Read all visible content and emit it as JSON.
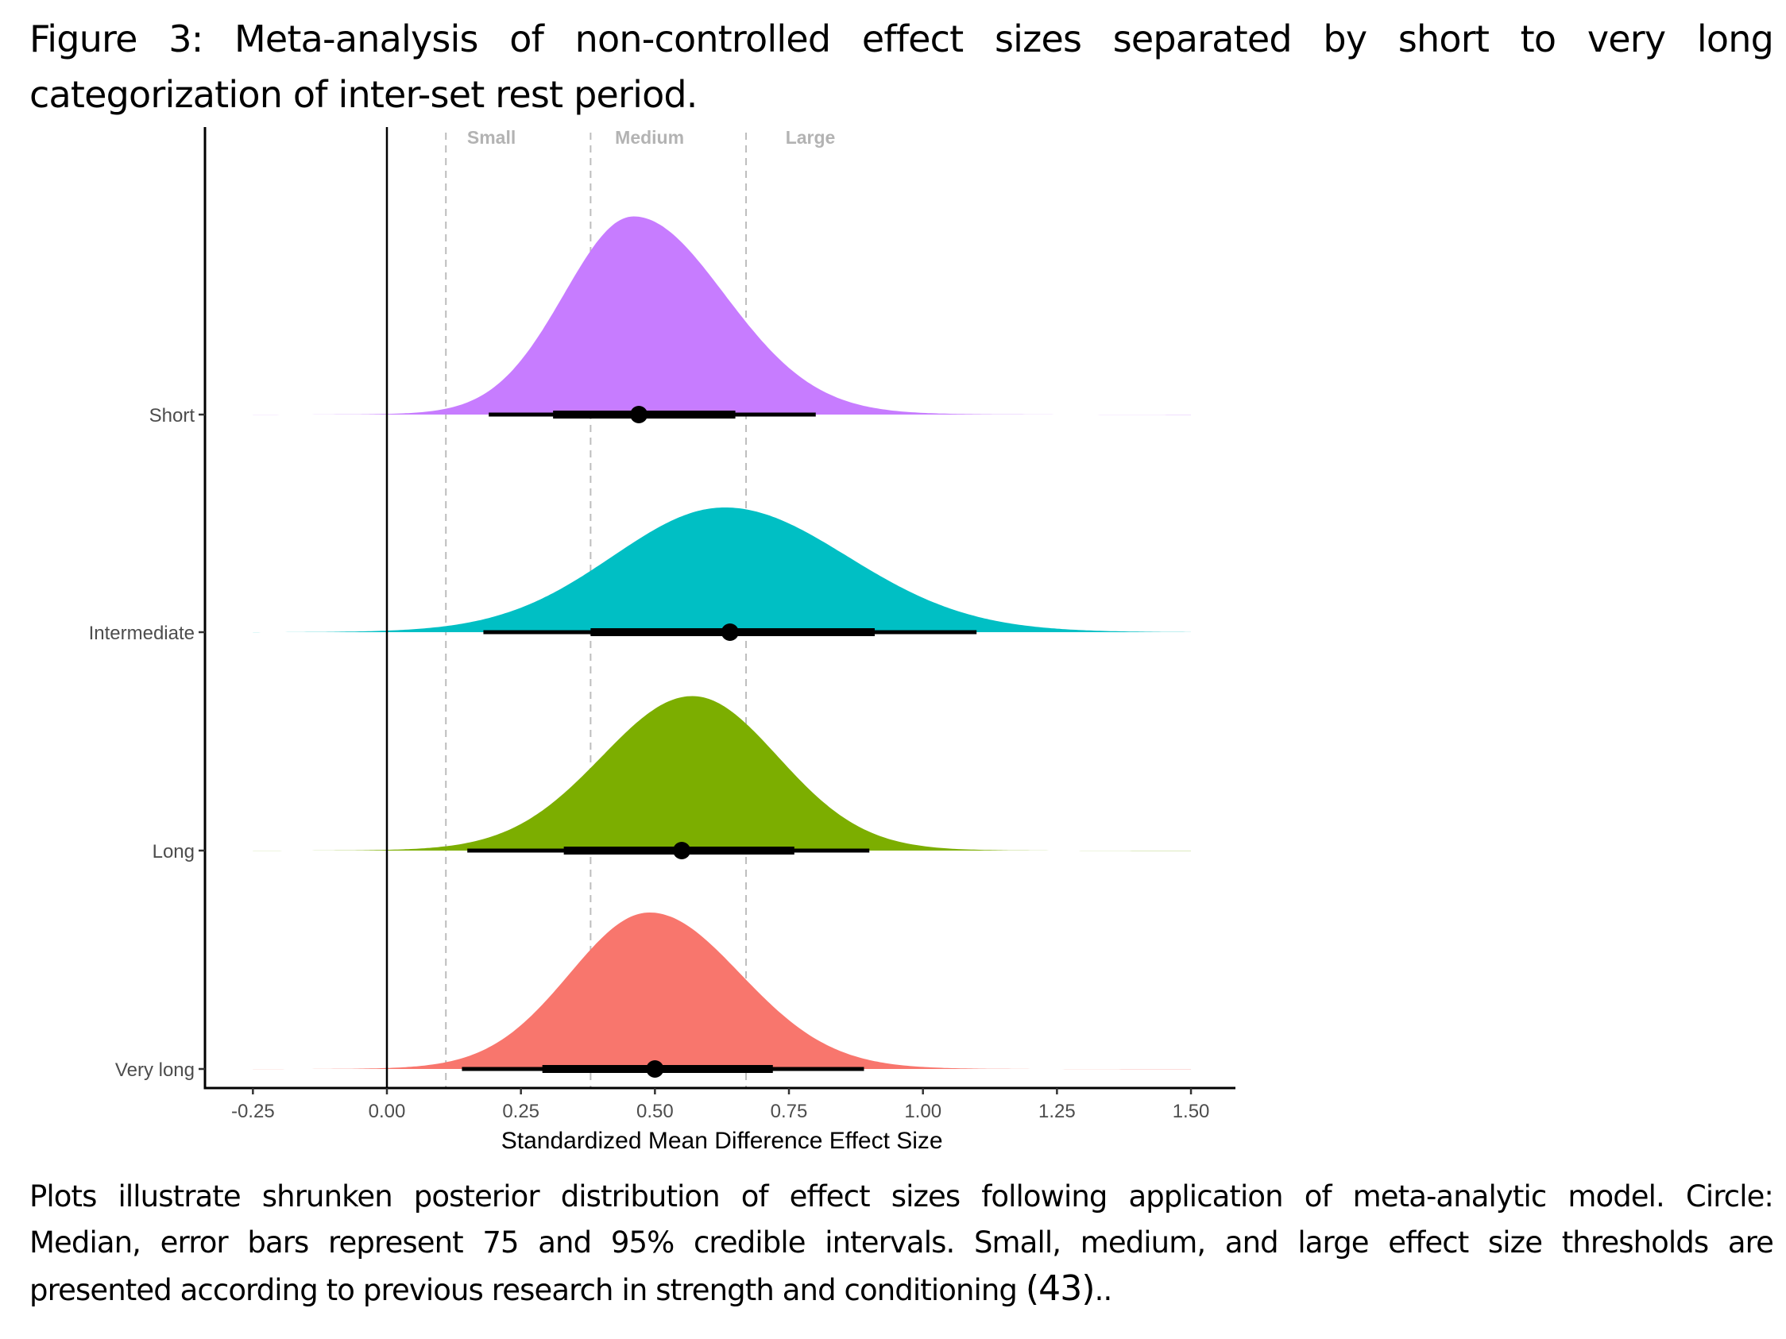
{
  "figure": {
    "title_line1": "Figure 3: Meta-analysis of non-controlled effect sizes separated by short to very long",
    "title_line2": "categorization of inter-set rest period.",
    "note_line1": "Plots illustrate shrunken posterior distribution of effect sizes following application of meta-analytic model. Circle:",
    "note_line2": "Median, error bars represent 75 and 95% credible intervals. Small, medium, and large effect size thresholds are",
    "note_line3_text": "presented according to previous research in strength and conditioning ",
    "note_line3_ref": "(43)",
    "note_line3_end": ".."
  },
  "chart_data": {
    "type": "density-interval",
    "title": "",
    "xlabel": "Standardized Mean Difference Effect Size",
    "ylabel": "",
    "xlim": [
      -0.25,
      1.5
    ],
    "x_ticks": [
      -0.25,
      0.0,
      0.25,
      0.5,
      0.75,
      1.0,
      1.25,
      1.5
    ],
    "x_tick_labels": [
      "-0.25",
      "0.00",
      "0.25",
      "0.50",
      "0.75",
      "1.00",
      "1.25",
      "1.50"
    ],
    "reference_line": 0.0,
    "grid": false,
    "thresholds": [
      {
        "value": 0.11,
        "label": "Small"
      },
      {
        "value": 0.38,
        "label": "Medium"
      },
      {
        "value": 0.67,
        "label": "Large"
      }
    ],
    "threshold_label_positions": [
      0.195,
      0.49,
      0.79
    ],
    "categories": [
      "Short",
      "Intermediate",
      "Long",
      "Very long"
    ],
    "series": [
      {
        "name": "Short",
        "color": "#C77CFF",
        "median": 0.47,
        "ci75": [
          0.31,
          0.65
        ],
        "ci95": [
          0.19,
          0.8
        ],
        "mode": 0.46,
        "sd_left": 0.13,
        "sd_right": 0.17,
        "relative_peak_density": 1.0,
        "tail": [
          -0.25,
          1.5
        ]
      },
      {
        "name": "Intermediate",
        "color": "#00BFC4",
        "median": 0.64,
        "ci75": [
          0.38,
          0.91
        ],
        "ci95": [
          0.18,
          1.1
        ],
        "mode": 0.63,
        "sd_left": 0.21,
        "sd_right": 0.23,
        "relative_peak_density": 0.63,
        "tail": [
          -0.25,
          1.5
        ]
      },
      {
        "name": "Long",
        "color": "#7CAE00",
        "median": 0.55,
        "ci75": [
          0.33,
          0.76
        ],
        "ci95": [
          0.15,
          0.9
        ],
        "mode": 0.57,
        "sd_left": 0.17,
        "sd_right": 0.16,
        "relative_peak_density": 0.78,
        "tail": [
          -0.25,
          1.5
        ]
      },
      {
        "name": "Very long",
        "color": "#F8766D",
        "median": 0.5,
        "ci75": [
          0.29,
          0.72
        ],
        "ci95": [
          0.14,
          0.89
        ],
        "mode": 0.49,
        "sd_left": 0.15,
        "sd_right": 0.17,
        "relative_peak_density": 0.79,
        "tail": [
          -0.25,
          1.5
        ]
      }
    ]
  }
}
